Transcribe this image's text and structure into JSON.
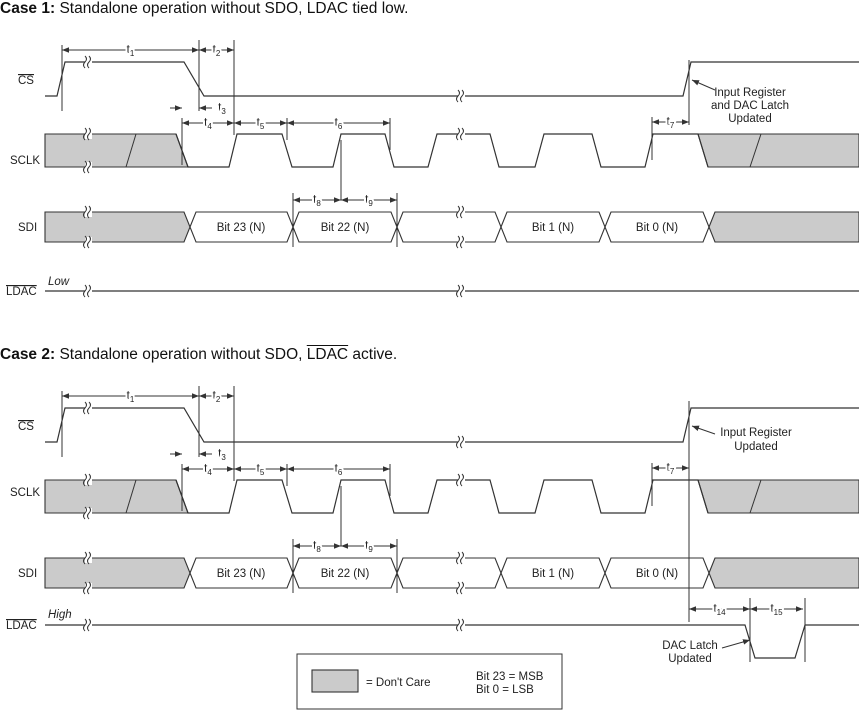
{
  "case1": {
    "title_bold": "Case 1:",
    "title_rest": " Standalone operation without SDO, ",
    "title_ldac": "LDAC",
    "title_end": " tied low.",
    "ldac_state": "Low",
    "annotation": [
      "Input Register",
      "and DAC Latch",
      "Updated"
    ]
  },
  "case2": {
    "title_bold": "Case 2:",
    "title_rest": " Standalone operation without SDO, ",
    "title_ldac": "LDAC",
    "title_end": " active.",
    "ldac_state": "High",
    "annotation": [
      "Input Register",
      "Updated"
    ],
    "latch_annotation": [
      "DAC Latch",
      "Updated"
    ]
  },
  "signals": {
    "cs": "CS",
    "sclk": "SCLK",
    "sdi": "SDI",
    "ldac": "LDAC"
  },
  "bits": [
    "Bit 23 (N)",
    "Bit 22 (N)",
    "Bit 1 (N)",
    "Bit 0 (N)"
  ],
  "timing": {
    "t": "t",
    "t1": "1",
    "t2": "2",
    "t3": "3",
    "t4": "4",
    "t5": "5",
    "t6": "6",
    "t7": "7",
    "t8": "8",
    "t9": "9",
    "t14": "14",
    "t15": "15"
  },
  "legend": {
    "dont_care": "= Don't Care",
    "msb": "Bit 23 = MSB",
    "lsb": "Bit 0 = LSB"
  },
  "colors": {
    "dont_care_fill": "#cbcbcb",
    "line": "#333333"
  }
}
